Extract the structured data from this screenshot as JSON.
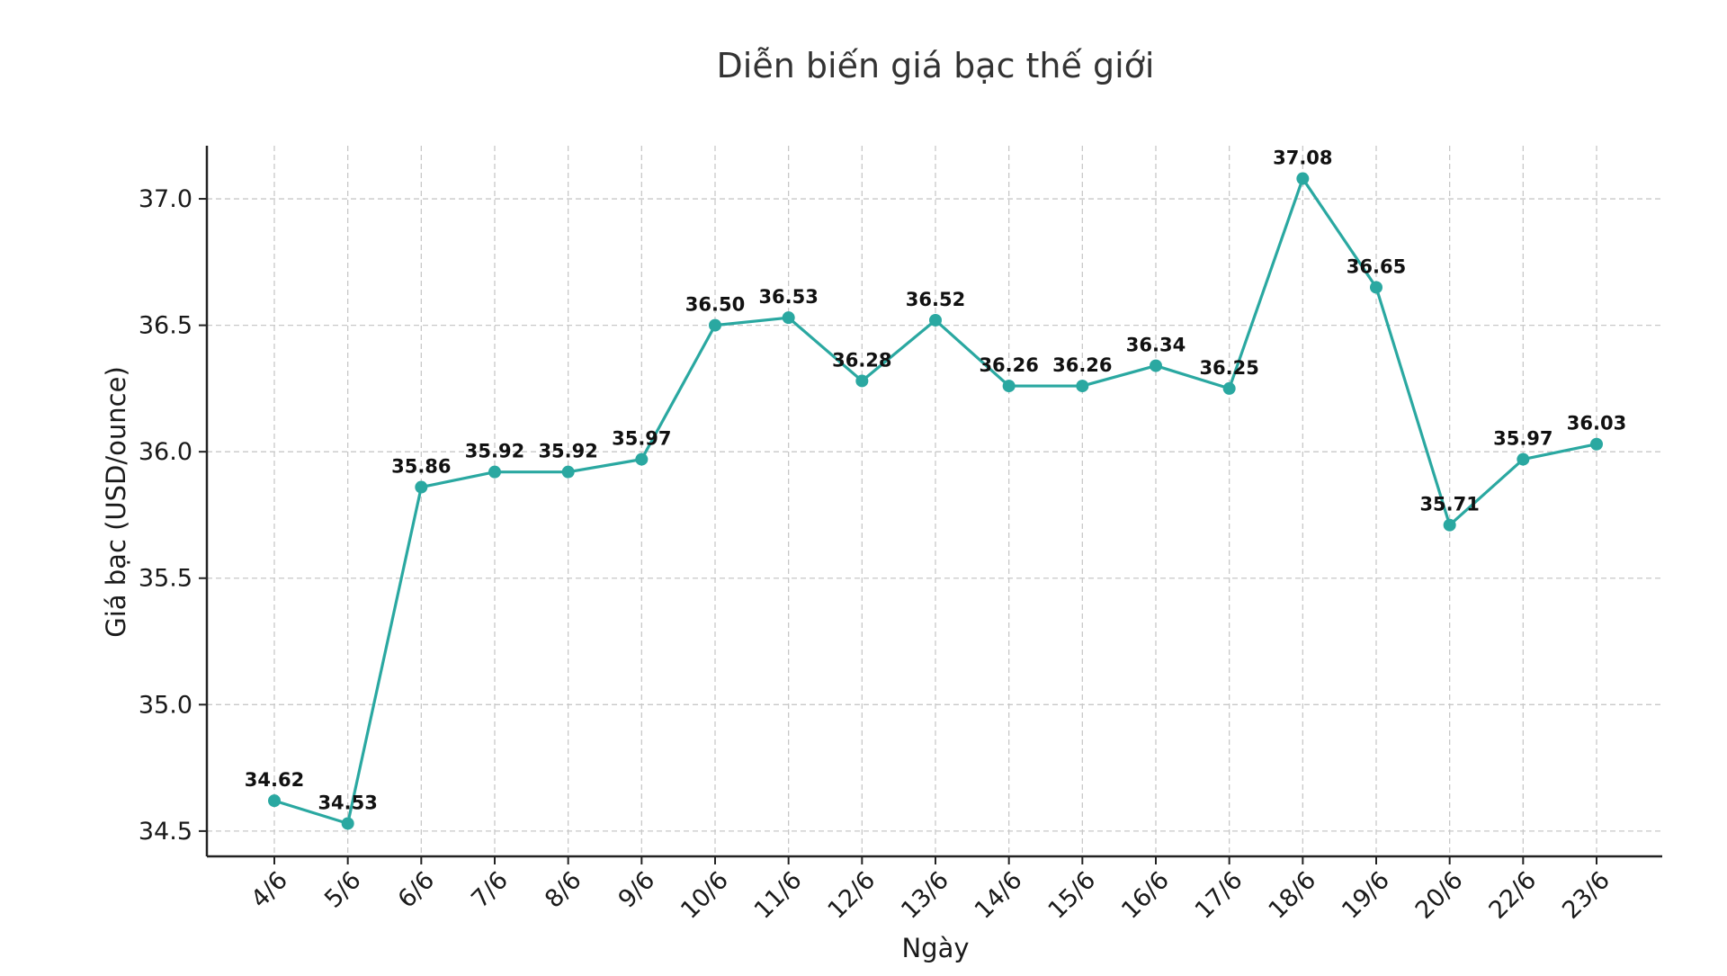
{
  "chart_data": {
    "type": "line",
    "title": "Diễn biến giá bạc thế giới",
    "xlabel": "Ngày",
    "ylabel": "Giá bạc (USD/ounce)",
    "categories": [
      "4/6",
      "5/6",
      "6/6",
      "7/6",
      "8/6",
      "9/6",
      "10/6",
      "11/6",
      "12/6",
      "13/6",
      "14/6",
      "15/6",
      "16/6",
      "17/6",
      "18/6",
      "19/6",
      "20/6",
      "22/6",
      "23/6"
    ],
    "values": [
      34.62,
      34.53,
      35.86,
      35.92,
      35.92,
      35.97,
      36.5,
      36.53,
      36.28,
      36.52,
      36.26,
      36.26,
      36.34,
      36.25,
      37.08,
      36.65,
      35.71,
      35.97,
      36.03
    ],
    "data_labels": [
      "34.62",
      "34.53",
      "35.86",
      "35.92",
      "35.92",
      "35.97",
      "36.50",
      "36.53",
      "36.28",
      "36.52",
      "36.26",
      "36.26",
      "36.34",
      "36.25",
      "37.08",
      "36.65",
      "35.71",
      "35.97",
      "36.03"
    ],
    "y_ticks": [
      34.5,
      35.0,
      35.5,
      36.0,
      36.5,
      37.0
    ],
    "y_tick_labels": [
      "34.5",
      "35.0",
      "35.5",
      "36.0",
      "36.5",
      "37.0"
    ],
    "ylim": [
      34.4,
      37.21
    ],
    "grid": true,
    "legend": "none",
    "line_color": "#2aa8a1"
  }
}
